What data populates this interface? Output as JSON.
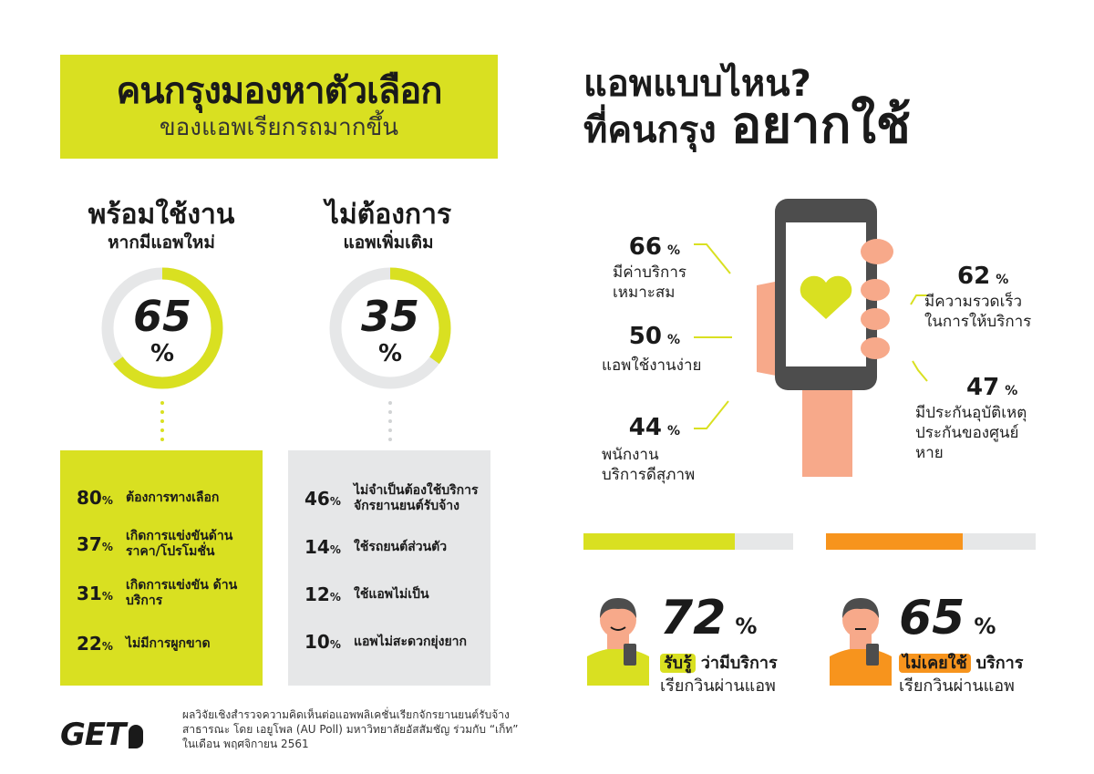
{
  "left_header": {
    "title": "คนกรุงมองหาตัวเลือก",
    "subtitle": "ของแอพเรียกรถมากขึ้น"
  },
  "right_header": {
    "line1": "แอพแบบไหน?",
    "line2": "ที่คนกรุง",
    "line2_big": "อยากใช้"
  },
  "colors": {
    "yellow": "#d9e021",
    "grey": "#e6e7e8",
    "orange": "#f7941d",
    "phone_dark": "#4d4d4d",
    "skin": "#f7a98a"
  },
  "chart_data": [
    {
      "type": "pie",
      "title": "พร้อมใช้งาน",
      "subtitle": "หากมีแอพใหม่",
      "values": [
        65,
        35
      ],
      "value_label": "65",
      "unit": "%"
    },
    {
      "type": "pie",
      "title": "ไม่ต้องการ",
      "subtitle": "แอพเพิ่มเติม",
      "values": [
        35,
        65
      ],
      "value_label": "35",
      "unit": "%"
    },
    {
      "type": "table",
      "rows": [
        {
          "value": "80",
          "unit": "%",
          "text": "ต้องการทางเลือก"
        },
        {
          "value": "37",
          "unit": "%",
          "text": "เกิดการแข่งขันด้าน ราคา/โปรโมชั่น"
        },
        {
          "value": "31",
          "unit": "%",
          "text": "เกิดการแข่งขัน ด้านบริการ"
        },
        {
          "value": "22",
          "unit": "%",
          "text": "ไม่มีการผูกขาด"
        }
      ]
    },
    {
      "type": "table",
      "rows": [
        {
          "value": "46",
          "unit": "%",
          "text": "ไม่จำเป็นต้องใช้บริการ จักรยานยนต์รับจ้าง"
        },
        {
          "value": "14",
          "unit": "%",
          "text": "ใช้รถยนต์ส่วนตัว"
        },
        {
          "value": "12",
          "unit": "%",
          "text": "ใช้แอพไม่เป็น"
        },
        {
          "value": "10",
          "unit": "%",
          "text": "แอพไม่สะดวกยุ่งยาก"
        }
      ]
    },
    {
      "type": "table",
      "rows": [
        {
          "value": "66",
          "unit": "%",
          "text": "มีค่าบริการ เหมาะสม"
        },
        {
          "value": "50",
          "unit": "%",
          "text": "แอพใช้งานง่าย"
        },
        {
          "value": "44",
          "unit": "%",
          "text": "พนักงาน บริการดีสุภาพ"
        },
        {
          "value": "62",
          "unit": "%",
          "text": "มีความรวดเร็ว ในการให้บริการ"
        },
        {
          "value": "47",
          "unit": "%",
          "text": "มีประกันอุบัติเหตุ ประกันของศูนย์หาย"
        }
      ]
    },
    {
      "type": "bar",
      "series": [
        {
          "value": 72,
          "unit": "%",
          "highlight": "รับรู้",
          "rest": "ว่ามีบริการ",
          "line2": "เรียกวินผ่านแอพ"
        },
        {
          "value": 65,
          "unit": "%",
          "highlight": "ไม่เคยใช้",
          "rest": "บริการ",
          "line2": "เรียกวินผ่านแอพ"
        }
      ],
      "ylim": [
        0,
        100
      ]
    }
  ],
  "footer": {
    "logo": "GET",
    "note": "ผลวิจัยเชิงสำรวจความคิดเห็นต่อแอพพลิเคชั่นเรียกจักรยานยนต์รับจ้าง สาธารณะ โดย เอยูโพล (AU Poll) มหาวิทยาลัยอัสสัมชัญ ร่วมกับ “เก็ท” ในเดือน พฤศจิกายน 2561"
  }
}
